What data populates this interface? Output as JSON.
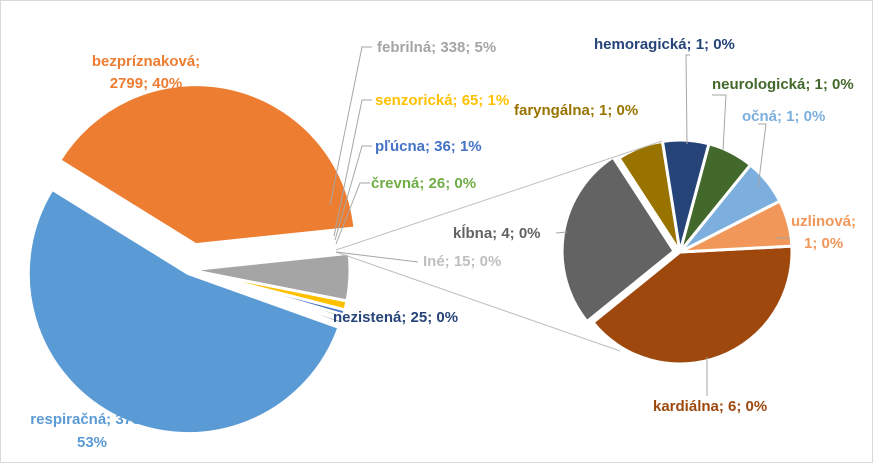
{
  "chart_data": {
    "type": "pie",
    "subtype": "pie-of-pie",
    "title": "",
    "main_pie": [
      {
        "name": "bezpríznaková",
        "value": 2799,
        "percent": "40%",
        "color": "#ED7D31"
      },
      {
        "name": "febrilná",
        "value": 338,
        "percent": "5%",
        "color": "#A5A5A5"
      },
      {
        "name": "senzorická",
        "value": 65,
        "percent": "1%",
        "color": "#FFC000"
      },
      {
        "name": "pľúcna",
        "value": 36,
        "percent": "1%",
        "color": "#4472C4"
      },
      {
        "name": "črevná",
        "value": 26,
        "percent": "0%",
        "color": "#70AD47"
      },
      {
        "name": "Iné",
        "value": 15,
        "percent": "0%",
        "color": "#BFBFBF"
      },
      {
        "name": "nezistená",
        "value": 25,
        "percent": "0%",
        "color": "#264478"
      },
      {
        "name": "respiračná",
        "value": 3780,
        "percent": "53%",
        "color": "#5B9BD5"
      }
    ],
    "secondary_pie": [
      {
        "name": "kardiálna",
        "value": 6,
        "percent": "0%",
        "color": "#9E480E"
      },
      {
        "name": "kĺbna",
        "value": 4,
        "percent": "0%",
        "color": "#636363"
      },
      {
        "name": "faryngálna",
        "value": 1,
        "percent": "0%",
        "color": "#997300"
      },
      {
        "name": "hemoragická",
        "value": 1,
        "percent": "0%",
        "color": "#264478"
      },
      {
        "name": "neurologická",
        "value": 1,
        "percent": "0%",
        "color": "#43682B"
      },
      {
        "name": "očná",
        "value": 1,
        "percent": "0%",
        "color": "#7CAFDD"
      },
      {
        "name": "uzlinová",
        "value": 1,
        "percent": "0%",
        "color": "#F1975A"
      }
    ],
    "labels": {
      "bezpriznakova_1": "bezpríznaková;",
      "bezpriznakova_2": "2799; 40%",
      "febrilna": "febrilná; 338; 5%",
      "senzoricka": "senzorická; 65; 1%",
      "plucna": "pľúcna; 36; 1%",
      "crevna": "črevná; 26; 0%",
      "ine": "Iné; 15; 0%",
      "nezistena": "nezistená; 25; 0%",
      "respiracna_1": "respiračná; 3780;",
      "respiracna_2": "53%",
      "kardialna": "kardiálna; 6; 0%",
      "klbna": "kĺbna; 4; 0%",
      "faryngalna": "faryngálna; 1; 0%",
      "hemoragicka": "hemoragická; 1; 0%",
      "neurologicka": "neurologická; 1; 0%",
      "ocna": "očná; 1; 0%",
      "uzlinova_1": "uzlinová;",
      "uzlinova_2": "1; 0%"
    },
    "legend": "none"
  }
}
